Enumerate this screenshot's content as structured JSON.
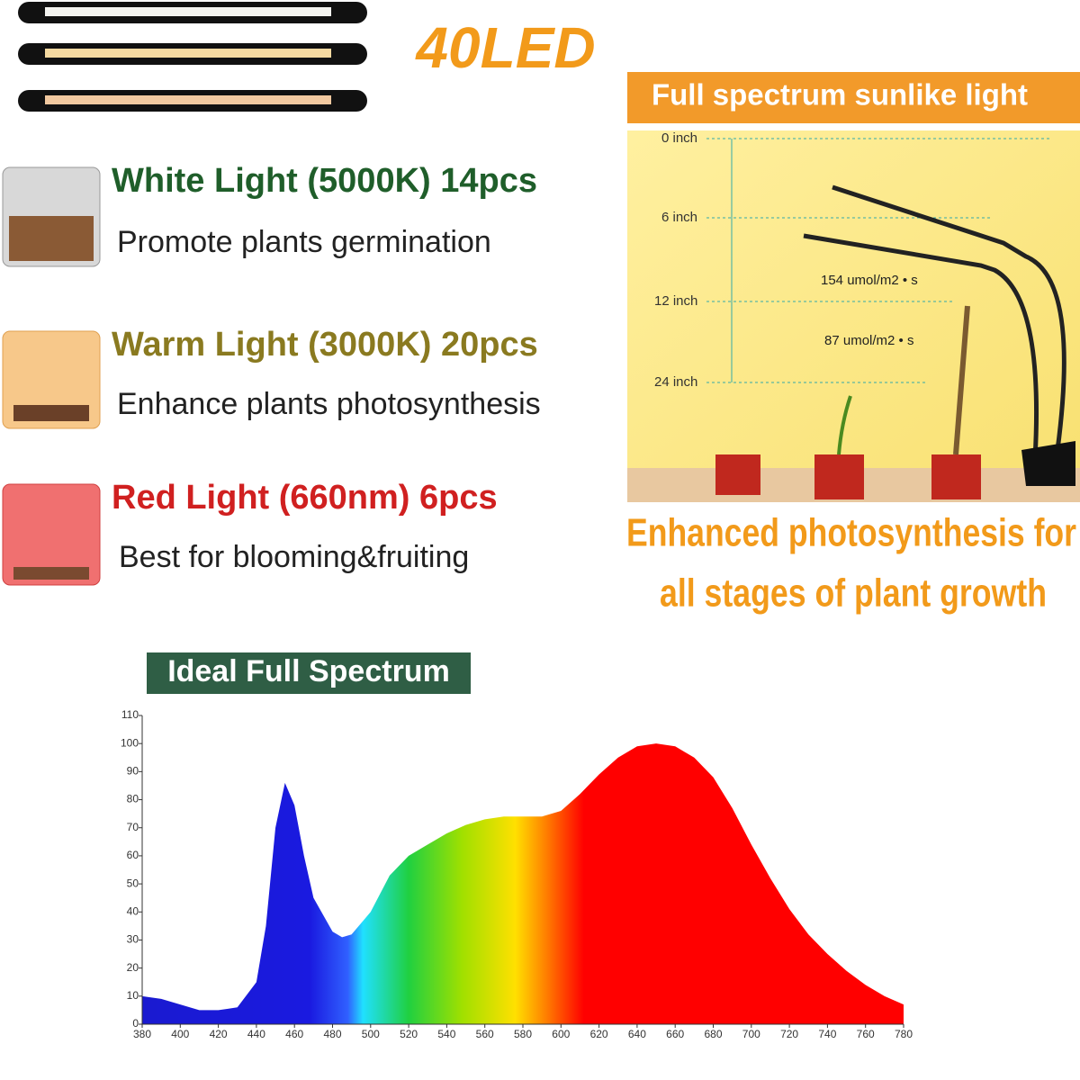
{
  "header": {
    "title": "40LED"
  },
  "lights": [
    {
      "title": "White Light (5000K) 14pcs",
      "description": "Promote plants germination"
    },
    {
      "title": "Warm Light (3000K) 20pcs",
      "description": "Enhance plants photosynthesis"
    },
    {
      "title": "Red Light (660nm) 6pcs",
      "description": "Best for blooming&fruiting"
    }
  ],
  "diagram": {
    "title": "Full spectrum sunlike light",
    "heights": [
      "0 inch",
      "6 inch",
      "12 inch",
      "24 inch"
    ],
    "intensities": [
      "154 umol/m2 • s",
      "87 umol/m2 • s"
    ],
    "caption": [
      "Enhanced photosynthesis for",
      "all stages of plant growth"
    ]
  },
  "chart_data": {
    "type": "area",
    "title": "Ideal Full Spectrum",
    "x": [
      380,
      390,
      400,
      410,
      420,
      430,
      440,
      445,
      450,
      455,
      460,
      465,
      470,
      480,
      485,
      490,
      500,
      510,
      520,
      530,
      540,
      550,
      560,
      570,
      580,
      590,
      600,
      610,
      620,
      630,
      640,
      650,
      660,
      670,
      680,
      690,
      700,
      710,
      720,
      730,
      740,
      750,
      760,
      770,
      780
    ],
    "values": [
      10,
      9,
      7,
      5,
      5,
      6,
      15,
      35,
      70,
      86,
      78,
      60,
      45,
      33,
      31,
      32,
      40,
      53,
      60,
      64,
      68,
      71,
      73,
      74,
      74,
      74,
      76,
      82,
      89,
      95,
      99,
      100,
      99,
      95,
      88,
      77,
      64,
      52,
      41,
      32,
      25,
      19,
      14,
      10,
      7
    ],
    "xlim": [
      380,
      780
    ],
    "ylim": [
      0,
      110
    ],
    "xticks": [
      380,
      400,
      420,
      440,
      460,
      480,
      500,
      520,
      540,
      560,
      580,
      600,
      620,
      640,
      660,
      680,
      700,
      720,
      740,
      760,
      780
    ],
    "yticks": [
      0,
      10,
      20,
      30,
      40,
      50,
      60,
      70,
      80,
      90,
      100,
      110
    ]
  }
}
